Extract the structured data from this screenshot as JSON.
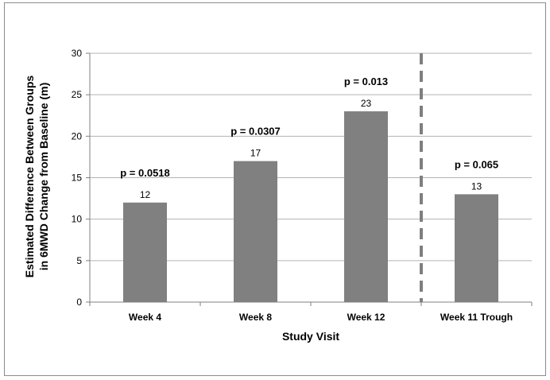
{
  "chart_data": {
    "type": "bar",
    "title": "",
    "xlabel": "Study Visit",
    "ylabel_lines": [
      "Estimated Difference Between Groups",
      "in 6MWD Change from Baseline (m)"
    ],
    "categories": [
      "Week 4",
      "Week 8",
      "Week 12",
      "Week 11 Trough"
    ],
    "values": [
      12,
      17,
      23,
      13
    ],
    "data_labels": [
      "12",
      "17",
      "23",
      "13"
    ],
    "p_values": [
      "p = 0.0518",
      "p = 0.0307",
      "p = 0.013",
      "p = 0.065"
    ],
    "ylim": [
      0,
      30
    ],
    "yticks": [
      0,
      5,
      10,
      15,
      20,
      25,
      30
    ],
    "grid": true,
    "separator": "dashed vertical line between Week 12 and Week 11 Trough",
    "colors": {
      "bar": "#808080",
      "grid": "#b3b3b3",
      "separator": "#7f7f7f"
    }
  }
}
